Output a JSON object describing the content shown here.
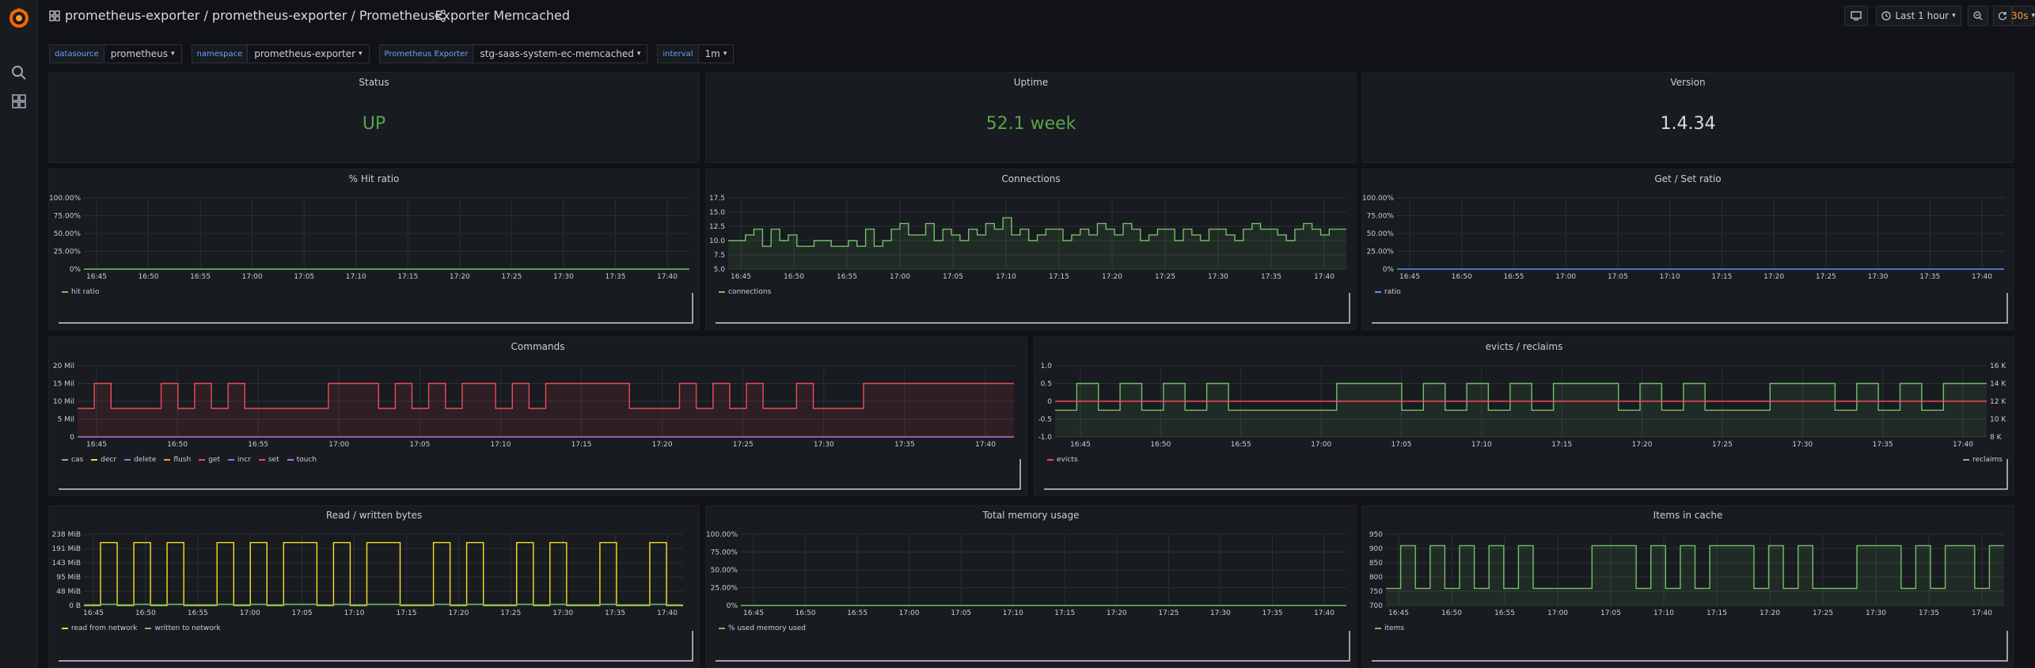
{
  "topnav": {
    "breadcrumb": "prometheus-exporter / prometheus-exporter / PrometheusExporter Memcached",
    "time_range": "Last 1 hour",
    "refresh_interval": "30s"
  },
  "variables": [
    {
      "label": "datasource",
      "value": "prometheus"
    },
    {
      "label": "namespace",
      "value": "prometheus-exporter"
    },
    {
      "label": "Prometheus Exporter",
      "value": "stg-saas-system-ec-memcached"
    },
    {
      "label": "interval",
      "value": "1m"
    }
  ],
  "colors": {
    "green": "#73bf69",
    "stat_green": "#56a64b",
    "red": "#f2495c",
    "yellow": "#fade2a",
    "blue": "#5794f2",
    "purple": "#b877d9"
  },
  "time_ticks": [
    "16:45",
    "16:50",
    "16:55",
    "17:00",
    "17:05",
    "17:10",
    "17:15",
    "17:20",
    "17:25",
    "17:30",
    "17:35",
    "17:40"
  ],
  "panels": {
    "status": {
      "title": "Status",
      "value": "UP"
    },
    "uptime": {
      "title": "Uptime",
      "value": "52.1 week"
    },
    "version": {
      "title": "Version",
      "value": "1.4.34"
    },
    "hit_ratio": {
      "title": "% Hit ratio",
      "y_ticks": [
        "100.00%",
        "75.00%",
        "50.00%",
        "25.00%",
        "0%"
      ],
      "legend": [
        "hit ratio"
      ]
    },
    "connections": {
      "title": "Connections",
      "y_ticks": [
        "17.5",
        "15.0",
        "12.5",
        "10.0",
        "7.5",
        "5.0"
      ],
      "legend": [
        "connections"
      ]
    },
    "getset": {
      "title": "Get / Set ratio",
      "y_ticks": [
        "100.00%",
        "75.00%",
        "50.00%",
        "25.00%",
        "0%"
      ],
      "legend": [
        "ratio"
      ]
    },
    "commands": {
      "title": "Commands",
      "y_ticks": [
        "20 Mil",
        "15 Mil",
        "10 Mil",
        "5 Mil",
        "0"
      ],
      "legend": [
        "cas",
        "decr",
        "delete",
        "flush",
        "get",
        "incr",
        "set",
        "touch"
      ]
    },
    "evicts": {
      "title": "evicts / reclaims",
      "y_ticks_left": [
        "1.0",
        "0.5",
        "0",
        "-0.5",
        "-1.0"
      ],
      "y_ticks_right": [
        "16 K",
        "14 K",
        "12 K",
        "10 K",
        "8 K"
      ],
      "legend_left": [
        "evicts"
      ],
      "legend_right": [
        "reclaims"
      ]
    },
    "rw_bytes": {
      "title": "Read / written bytes",
      "y_ticks": [
        "238 MiB",
        "191 MiB",
        "143 MiB",
        "95 MiB",
        "48 MiB",
        "0 B"
      ],
      "legend": [
        "read from network",
        "written to network"
      ]
    },
    "memory": {
      "title": "Total memory usage",
      "y_ticks": [
        "100.00%",
        "75.00%",
        "50.00%",
        "25.00%",
        "0%"
      ],
      "legend": [
        "% used memory used"
      ]
    },
    "items": {
      "title": "Items in cache",
      "y_ticks": [
        "950",
        "900",
        "850",
        "800",
        "750",
        "700"
      ],
      "legend": [
        "items"
      ]
    }
  },
  "chart_data": [
    {
      "type": "line",
      "title": "% Hit ratio",
      "series": [
        {
          "name": "hit ratio",
          "values": [
            0,
            0,
            0,
            0,
            0,
            0,
            0,
            0,
            0,
            0,
            0,
            0
          ]
        }
      ],
      "x": [
        "16:45",
        "16:50",
        "16:55",
        "17:00",
        "17:05",
        "17:10",
        "17:15",
        "17:20",
        "17:25",
        "17:30",
        "17:35",
        "17:40"
      ],
      "ylim": [
        0,
        100
      ]
    },
    {
      "type": "line",
      "title": "Connections",
      "series": [
        {
          "name": "connections",
          "values": [
            10,
            10,
            11,
            12,
            9,
            12,
            10,
            11,
            9,
            9,
            10,
            10,
            9,
            9,
            10,
            9,
            12,
            9,
            10,
            12,
            13,
            11,
            11,
            13,
            10,
            12,
            11,
            10,
            12,
            11,
            13,
            12,
            14,
            11,
            12,
            10,
            11,
            12,
            12,
            10,
            11,
            12,
            11,
            13,
            12,
            11,
            13,
            12,
            10,
            11,
            12,
            12,
            10,
            12,
            11,
            10,
            12,
            12,
            11,
            10,
            12,
            13,
            12,
            12,
            11,
            10,
            12,
            13,
            12,
            11,
            12,
            12
          ]
        }
      ],
      "ylim": [
        5,
        17.5
      ]
    },
    {
      "type": "line",
      "title": "Get / Set ratio",
      "series": [
        {
          "name": "ratio",
          "values": [
            0,
            0,
            0,
            0,
            0,
            0,
            0,
            0,
            0,
            0,
            0,
            0
          ]
        }
      ],
      "ylim": [
        0,
        100
      ]
    },
    {
      "type": "line",
      "title": "Commands",
      "series": [
        {
          "name": "set",
          "values": [
            8,
            15,
            8,
            8,
            8,
            15,
            8,
            15,
            8,
            15,
            8,
            8,
            8,
            8,
            8,
            15,
            15,
            15,
            8,
            15,
            8,
            15,
            8,
            15,
            15,
            8,
            15,
            8,
            15,
            15,
            15,
            15,
            15,
            8,
            8,
            8,
            15,
            8,
            15,
            8,
            15,
            8,
            8,
            15,
            8,
            8,
            8,
            15,
            15,
            15,
            15,
            15,
            15,
            15,
            15,
            15
          ]
        },
        {
          "name": "get",
          "values": [
            0,
            0,
            0,
            0,
            0,
            0,
            0,
            0,
            0,
            0,
            0,
            0
          ]
        }
      ],
      "ylim": [
        0,
        20
      ]
    },
    {
      "type": "line",
      "title": "evicts / reclaims",
      "series": [
        {
          "name": "evicts",
          "values": [
            0,
            0,
            0,
            0,
            0,
            0,
            0,
            0,
            0,
            0,
            0,
            0
          ]
        },
        {
          "name": "reclaims",
          "values": [
            11000,
            14000,
            11000,
            14000,
            11000,
            14000,
            11000,
            14000,
            11000,
            11000,
            11000,
            11000,
            11000,
            14000,
            14000,
            14000,
            11000,
            14000,
            11000,
            14000,
            11000,
            14000,
            11000,
            14000,
            14000,
            14000,
            11000,
            14000,
            11000,
            14000,
            11000,
            11000,
            11000,
            14000,
            14000,
            14000,
            11000,
            14000,
            11000,
            14000,
            11000,
            14000,
            14000
          ]
        }
      ],
      "ylim": [
        -1,
        1
      ]
    },
    {
      "type": "line",
      "title": "Read / written bytes",
      "series": [
        {
          "name": "read from network",
          "values": [
            0,
            210,
            0,
            210,
            0,
            210,
            0,
            0,
            210,
            0,
            210,
            0,
            210,
            210,
            0,
            210,
            0,
            210,
            210,
            0,
            0,
            210,
            0,
            210,
            0,
            0,
            210,
            0,
            210,
            0,
            0,
            210,
            0,
            0,
            210,
            0
          ]
        },
        {
          "name": "written to network",
          "values": [
            2,
            4,
            2,
            4,
            2,
            4,
            2,
            2,
            4,
            2,
            4,
            2,
            4,
            4,
            2,
            4,
            2,
            4,
            4,
            2,
            2,
            4,
            2,
            4,
            2,
            2,
            4,
            2,
            4,
            2,
            2,
            4,
            2,
            2,
            4,
            2
          ]
        }
      ],
      "ylim": [
        0,
        238
      ]
    },
    {
      "type": "line",
      "title": "Total memory usage",
      "series": [
        {
          "name": "% used memory used",
          "values": [
            0,
            0,
            0,
            0,
            0,
            0,
            0,
            0,
            0,
            0,
            0,
            0
          ]
        }
      ],
      "ylim": [
        0,
        100
      ]
    },
    {
      "type": "line",
      "title": "Items in cache",
      "series": [
        {
          "name": "items",
          "values": [
            760,
            910,
            760,
            910,
            760,
            910,
            760,
            910,
            760,
            910,
            760,
            760,
            760,
            760,
            910,
            910,
            910,
            760,
            910,
            760,
            910,
            760,
            910,
            910,
            910,
            760,
            910,
            760,
            910,
            760,
            760,
            760,
            910,
            910,
            910,
            760,
            910,
            760,
            910,
            910,
            760,
            910
          ]
        }
      ],
      "ylim": [
        700,
        950
      ]
    }
  ]
}
